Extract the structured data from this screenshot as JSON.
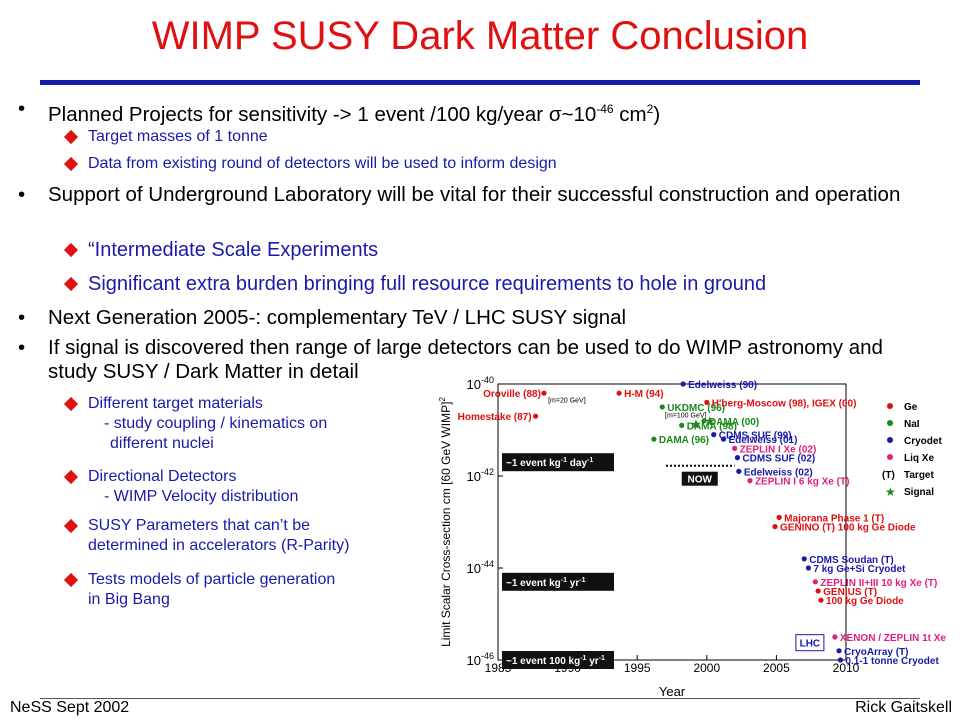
{
  "slide": {
    "title": "WIMP SUSY Dark Matter Conclusion",
    "footer_left": "NeSS Sept 2002",
    "footer_right": "Rick Gaitskell",
    "bullets": [
      {
        "text_a": "Planned Projects for sensitivity -> 1 event /100 kg/year ",
        "sigma": "σ",
        "text_b": "~10",
        "sup": "-46",
        "text_c": " cm",
        "sup2": "2",
        "text_d": ")"
      },
      {
        "text": "Support of Underground Laboratory will be vital for their successful construction and operation"
      },
      {
        "text": "Next Generation 2005-: complementary TeV / LHC SUSY signal"
      },
      {
        "text": "If signal is discovered then range of large detectors can be used to do WIMP astronomy and study SUSY / Dark Matter in detail"
      }
    ],
    "subbullets": {
      "b1": [
        "Target masses of 1 tonne",
        "Data from existing round of detectors will be used to inform design"
      ],
      "b2": [
        "“Intermediate Scale Experiments",
        "Significant extra burden bringing full resource requirements to hole in ground"
      ],
      "b4": [
        {
          "line1": "Different target materials",
          "line2": "- study coupling / kinematics on",
          "line3": "different nuclei"
        },
        {
          "line1": "Directional Detectors",
          "line2": "- WIMP Velocity distribution"
        },
        {
          "line1": "SUSY Parameters that can’t be",
          "line2": "determined in accelerators (R-Parity)"
        },
        {
          "line1": "Tests models of particle generation",
          "line2": "in Big Bang"
        }
      ]
    }
  },
  "chart_data": {
    "type": "scatter",
    "xlabel": "Year",
    "ylabel": "Limit Scalar Cross-section cm  [60 GeV WIMP]",
    "ylabel_sup": "2",
    "xlim": [
      1985,
      2010
    ],
    "ylim_log10": [
      -46,
      -40
    ],
    "x_ticks": [
      "1985",
      "1990",
      "1995",
      "2000",
      "2005",
      "2010"
    ],
    "y_ticks": [
      {
        "base": "10",
        "exp": "-40",
        "v": -40
      },
      {
        "base": "10",
        "exp": "-42",
        "v": -42
      },
      {
        "base": "10",
        "exp": "-44",
        "v": -44
      },
      {
        "base": "10",
        "exp": "-46",
        "v": -46
      }
    ],
    "event_boxes": [
      {
        "text": "~1 event kg",
        "e1": "-1",
        "mid": " day",
        "e2": "-1",
        "y": -41.7
      },
      {
        "text": "~1 event kg",
        "e1": "-1",
        "mid": " yr",
        "e2": "-1",
        "y": -44.3
      },
      {
        "text": "~1 event 100 kg",
        "e1": "-1",
        "mid": " yr",
        "e2": "-1",
        "y": -46.0
      }
    ],
    "now_label": "NOW",
    "lhc_label": "LHC",
    "legend": [
      {
        "name": "Ge",
        "color": "#e01010"
      },
      {
        "name": "NaI",
        "color": "#1a8a1a"
      },
      {
        "name": "Cryodet",
        "color": "#1a1aa8"
      },
      {
        "name": "Liq Xe",
        "color": "#e0207a"
      },
      {
        "name": "Target",
        "marker": "(T)"
      },
      {
        "name": "Signal",
        "marker": "★"
      }
    ],
    "points": [
      {
        "x": 1987.7,
        "y": -40.7,
        "label": "Homestake (87)",
        "color": "#e01010"
      },
      {
        "x": 1988.3,
        "y": -40.2,
        "label": "Oroville (88)",
        "color": "#e01010"
      },
      {
        "x": 1993.7,
        "y": -40.2,
        "label": "H-M (94)",
        "color": "#e01010"
      },
      {
        "x": 1996.8,
        "y": -40.5,
        "label": "UKDMC (96)",
        "color": "#1a8a1a"
      },
      {
        "x": 1998.3,
        "y": -40.0,
        "label": "Edelweiss (98)",
        "color": "#1a1aa8"
      },
      {
        "x": 1998.2,
        "y": -40.9,
        "label": "DAMA (98)",
        "color": "#1a8a1a"
      },
      {
        "x": 1996.2,
        "y": -41.2,
        "label": "DAMA (96)",
        "color": "#1a8a1a"
      },
      {
        "x": 1999.8,
        "y": -40.8,
        "label": "DAMA (00)",
        "color": "#1a8a1a"
      },
      {
        "x": 2000.0,
        "y": -40.4,
        "label": "H'berg-Moscow (98), IGEX (00)",
        "color": "#e01010"
      },
      {
        "x": 2000.5,
        "y": -41.1,
        "label": "CDMS SUF (99)",
        "color": "#1a1aa8"
      },
      {
        "x": 2001.2,
        "y": -41.2,
        "label": "Edelweiss (01)",
        "color": "#1a1aa8"
      },
      {
        "x": 2002.0,
        "y": -41.4,
        "label": "ZEPLIN I Xe (02)",
        "color": "#e0207a"
      },
      {
        "x": 2002.2,
        "y": -41.6,
        "label": "CDMS SUF (02)",
        "color": "#1a1aa8"
      },
      {
        "x": 2002.3,
        "y": -41.9,
        "label": "Edelweiss (02)",
        "color": "#1a1aa8"
      },
      {
        "x": 2003.1,
        "y": -42.1,
        "label": "ZEPLIN I 6 kg Xe (T)",
        "color": "#e0207a"
      },
      {
        "x": 2005.2,
        "y": -42.9,
        "label": "Majorana Phase 1 (T)",
        "color": "#e01010"
      },
      {
        "x": 2004.9,
        "y": -43.1,
        "label": "GENINO (T) 100 kg Ge Diode",
        "color": "#e01010"
      },
      {
        "x": 2007.0,
        "y": -43.8,
        "label": "CDMS Soudan (T)",
        "color": "#1a1aa8"
      },
      {
        "x": 2007.3,
        "y": -44.0,
        "label": "7 kg Ge+Si Cryodet",
        "color": "#1a1aa8"
      },
      {
        "x": 2007.8,
        "y": -44.3,
        "label": "ZEPLIN II+III 10 kg Xe (T)",
        "color": "#e0207a"
      },
      {
        "x": 2008.0,
        "y": -44.5,
        "label": "GENIUS (T)",
        "color": "#e01010"
      },
      {
        "x": 2008.2,
        "y": -44.7,
        "label": "100 kg Ge Diode",
        "color": "#e01010"
      },
      {
        "x": 2009.2,
        "y": -45.5,
        "label": "XENON / ZEPLIN 1t Xe",
        "color": "#e0207a"
      },
      {
        "x": 2009.5,
        "y": -45.8,
        "label": "CryoArray (T)",
        "color": "#1a1aa8"
      },
      {
        "x": 2009.6,
        "y": -46.0,
        "label": "0.1-1 tonne Cryodet",
        "color": "#1a1aa8"
      }
    ],
    "annotations": [
      "[m=20 GeV]",
      "[m=100 GeV]"
    ]
  }
}
